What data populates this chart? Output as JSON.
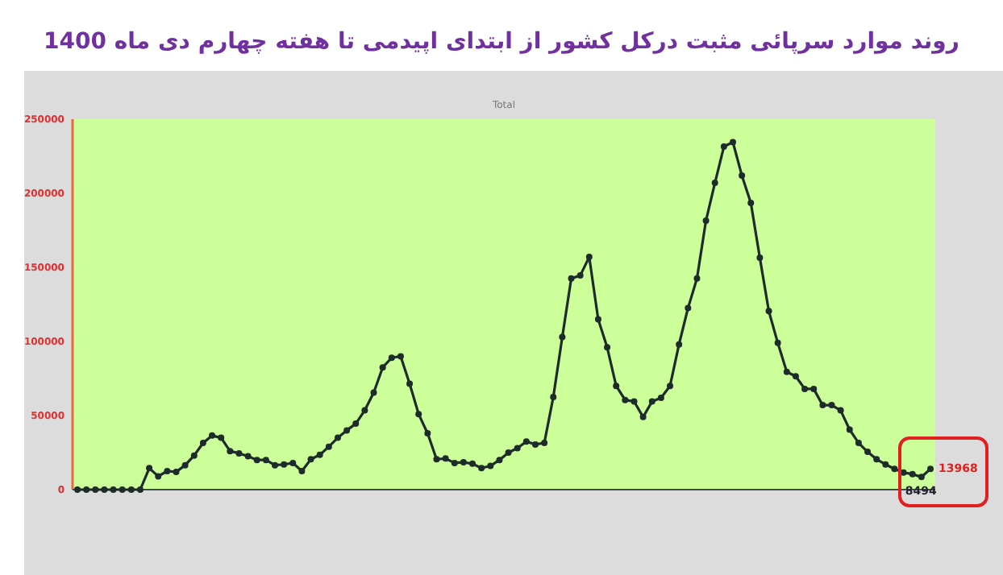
{
  "chart_data": {
    "type": "line",
    "title": "روند موارد سرپائی مثبت  درکل کشور از ابتدای اپیدمی تا هفته چهارم دی ماه 1400",
    "subtitle": "Total",
    "categories": [
      null,
      null,
      null,
      null,
      null,
      null,
      null,
      null,
      null,
      null,
      null,
      null,
      null,
      null,
      null,
      null,
      null,
      null,
      null,
      null,
      null,
      null,
      null,
      null,
      null,
      null,
      null,
      null,
      null,
      null,
      null,
      null,
      null,
      null,
      null,
      null,
      null,
      null,
      null,
      null,
      null,
      null,
      null,
      null,
      null,
      null,
      null,
      null,
      null,
      null,
      null,
      null,
      null,
      null,
      null,
      null,
      null,
      null,
      null,
      null,
      null,
      null,
      null,
      null,
      null,
      null,
      null,
      null,
      null,
      null,
      null,
      null,
      null,
      null,
      null,
      null,
      null,
      null,
      null,
      null,
      null,
      null,
      null,
      null,
      null,
      null,
      null,
      null,
      null,
      null,
      null,
      null,
      null,
      null,
      null,
      null
    ],
    "series": [
      {
        "color": "#1e2b2b",
        "values": [
          0,
          0,
          0,
          0,
          0,
          0,
          0,
          0,
          14500,
          9000,
          12500,
          12000,
          16500,
          23000,
          31500,
          36500,
          35000,
          26000,
          24500,
          22500,
          20000,
          20000,
          16500,
          17000,
          18000,
          12500,
          20500,
          23500,
          29000,
          35000,
          40000,
          44500,
          53500,
          65500,
          82500,
          89000,
          90000,
          71500,
          51000,
          38000,
          20500,
          21000,
          18000,
          18500,
          17500,
          14500,
          16000,
          20000,
          25000,
          28000,
          32500,
          30500,
          31500,
          62500,
          103000,
          142500,
          144500,
          157000,
          115000,
          96000,
          70000,
          60500,
          59500,
          49000,
          59500,
          62000,
          70000,
          98000,
          122500,
          142500,
          181500,
          207000,
          231500,
          234500,
          212000,
          193500,
          156500,
          120500,
          99000,
          79500,
          76500,
          68000,
          68000,
          57000,
          57000,
          53500,
          40500,
          31500,
          25500,
          20500,
          17000,
          14000,
          11500,
          10500,
          8494,
          13968
        ]
      }
    ],
    "ylim": [
      0,
      250000
    ],
    "yticks": [
      0,
      50000,
      100000,
      150000,
      200000,
      250000
    ],
    "tick_labels": "y",
    "marker": "circle",
    "grid": false,
    "annotations": [
      "13968",
      "8494"
    ]
  }
}
